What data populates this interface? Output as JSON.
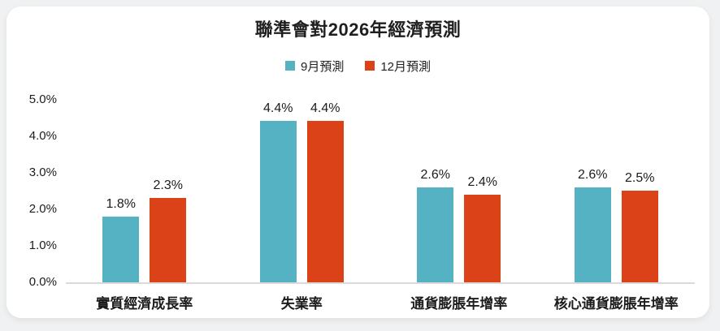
{
  "page": {
    "background_color": "#f0f1f2",
    "card_background_color": "#ffffff",
    "baseline_color": "#dadada"
  },
  "chart_data": {
    "type": "bar",
    "title": "聯準會對2026年經濟預測",
    "categories": [
      "實質經濟成長率",
      "失業率",
      "通貨膨脹年增率",
      "核心通貨膨脹年增率"
    ],
    "series": [
      {
        "name": "9月預測",
        "color": "#54B2C3",
        "values": [
          1.8,
          4.4,
          2.6,
          2.6
        ],
        "labels": [
          "1.8%",
          "4.4%",
          "2.6%",
          "2.6%"
        ]
      },
      {
        "name": "12月預測",
        "color": "#DB4217",
        "values": [
          2.3,
          4.4,
          2.4,
          2.5
        ],
        "labels": [
          "2.3%",
          "4.4%",
          "2.4%",
          "2.5%"
        ]
      }
    ],
    "ylim": [
      0,
      5
    ],
    "yticks": [
      "5.0%",
      "4.0%",
      "3.0%",
      "2.0%",
      "1.0%",
      "0.0%"
    ],
    "grid": false,
    "legend_position": "top",
    "xlabel": "",
    "ylabel": ""
  }
}
